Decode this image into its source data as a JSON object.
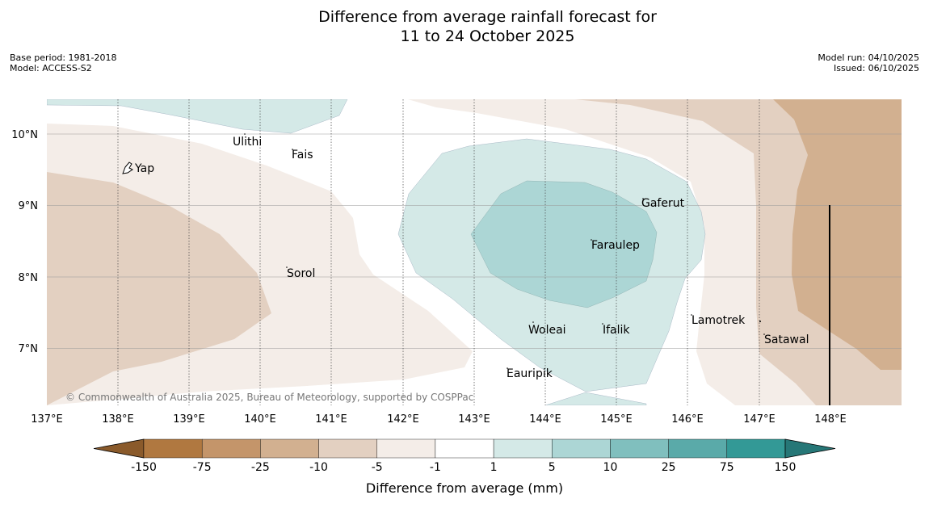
{
  "title": {
    "line1": "Difference from average rainfall forecast for",
    "line2": "11 to 24 October 2025"
  },
  "meta": {
    "base_period": "Base period: 1981-2018",
    "model": "Model: ACCESS-S2",
    "model_run": "Model run: 04/10/2025",
    "issued": "Issued: 06/10/2025"
  },
  "colors": {
    "brown_1": "#f4ede8",
    "brown_2": "#e3d0c1",
    "brown_3": "#d2b090",
    "teal_1": "#d4e9e7",
    "teal_2": "#acd6d5",
    "land": "#ffffff"
  },
  "axes": {
    "longitudes": [
      "137°E",
      "138°E",
      "139°E",
      "140°E",
      "141°E",
      "142°E",
      "143°E",
      "144°E",
      "145°E",
      "146°E",
      "147°E",
      "148°E"
    ],
    "latitudes": [
      "10°N",
      "9°N",
      "8°N",
      "7°N"
    ]
  },
  "places": {
    "yap": "Yap",
    "ulithi": "Ulithi",
    "fais": "Fais",
    "gaferut": "Gaferut",
    "faraulep": "Faraulep",
    "sorol": "Sorol",
    "lamotrek": "Lamotrek",
    "satawal": "Satawal",
    "woleai": "Woleai",
    "ifalik": "Ifalik",
    "eauripik": "Eauripik"
  },
  "copyright": "© Commonwealth of Australia 2025, Bureau of Meteorology, supported by COSPPac",
  "legend": {
    "title": "Difference from average (mm)",
    "ticks": [
      "-150",
      "-75",
      "-25",
      "-10",
      "-5",
      "-1",
      "1",
      "5",
      "10",
      "25",
      "75",
      "150"
    ],
    "colors": [
      "#8a5a2b",
      "#b07840",
      "#c4956a",
      "#d2b090",
      "#e3d0c1",
      "#f4ede8",
      "#ffffff",
      "#d4e9e7",
      "#acd6d5",
      "#80bfbe",
      "#5aaaa9",
      "#339996",
      "#267777"
    ]
  }
}
